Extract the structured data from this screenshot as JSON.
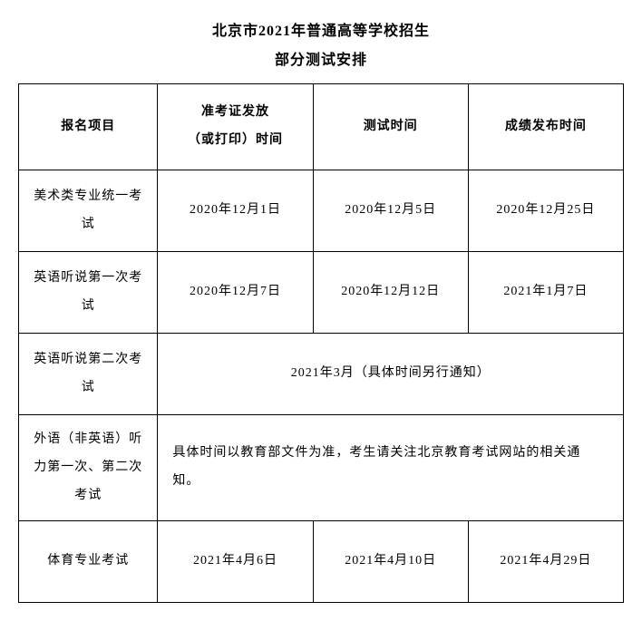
{
  "title": "北京市2021年普通高等学校招生",
  "subtitle": "部分测试安排",
  "table": {
    "headers": {
      "col1": "报名项目",
      "col2_line1": "准考证发放",
      "col2_line2": "（或打印）时间",
      "col3": "测试时间",
      "col4": "成绩发布时间"
    },
    "rows": [
      {
        "item_line1": "美术类专业统一考",
        "item_line2": "试",
        "ticket_time": "2020年12月1日",
        "test_time": "2020年12月5日",
        "result_time": "2020年12月25日"
      },
      {
        "item_line1": "英语听说第一次考",
        "item_line2": "试",
        "ticket_time": "2020年12月7日",
        "test_time": "2020年12月12日",
        "result_time": "2021年1月7日"
      },
      {
        "item_line1": "英语听说第二次考",
        "item_line2": "试",
        "merged": "2021年3月（具体时间另行通知）"
      },
      {
        "item_line1": "外语（非英语）听",
        "item_line2": "力第一次、第二次",
        "item_line3": "考试",
        "merged_line1": "具体时间以教育部文件为准，考生请关注北京教育考试网站的相关通",
        "merged_line2": "知。"
      },
      {
        "item": "体育专业考试",
        "ticket_time": "2021年4月6日",
        "test_time": "2021年4月10日",
        "result_time": "2021年4月29日"
      }
    ]
  },
  "colors": {
    "text": "#000000",
    "border": "#000000",
    "background": "#ffffff"
  }
}
